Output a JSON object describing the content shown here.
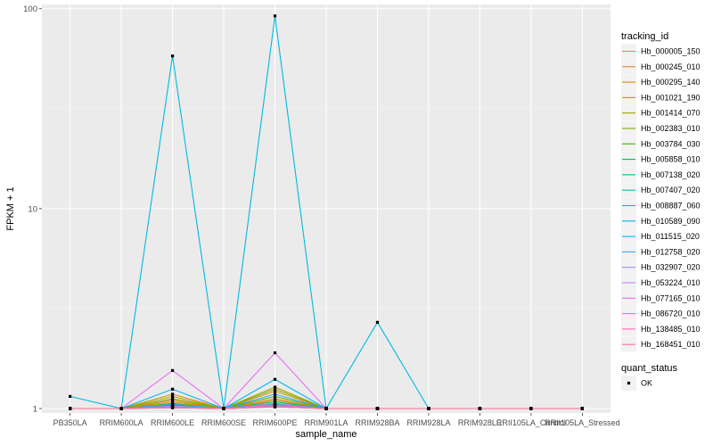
{
  "chart_data": {
    "type": "line",
    "xlabel": "sample_name",
    "ylabel": "FPKM + 1",
    "y_scale": "log10",
    "ylim": [
      0.95,
      105
    ],
    "y_ticks": [
      1,
      10,
      100
    ],
    "y_tick_labels": [
      "1",
      "10",
      "100"
    ],
    "categories": [
      "PB350LA",
      "RRIM600LA",
      "RRIM600LE",
      "RRIM600SE",
      "RRIM600PE",
      "RRIM901LA",
      "RRIM928BA",
      "RRIM928LA",
      "RRIM928LE",
      "RRII105LA_Control",
      "RRII105LA_Stressed"
    ],
    "legend_title": "tracking_id",
    "legend_position": "right",
    "grid": true,
    "background": "#ebebeb",
    "series": [
      {
        "name": "Hb_000005_150",
        "color": "#F8766D",
        "values": [
          1,
          1,
          1.05,
          1,
          1.06,
          1,
          1,
          1,
          1,
          1,
          1
        ]
      },
      {
        "name": "Hb_000245_010",
        "color": "#EA8331",
        "values": [
          1,
          1,
          1.1,
          1,
          1.12,
          1,
          1,
          1,
          1,
          1,
          1
        ]
      },
      {
        "name": "Hb_000295_140",
        "color": "#D89000",
        "values": [
          1,
          1,
          1.18,
          1,
          1.22,
          1,
          1,
          1,
          1,
          1,
          1
        ]
      },
      {
        "name": "Hb_001021_190",
        "color": "#C09B00",
        "values": [
          1,
          1,
          1.08,
          1,
          1.1,
          1,
          1,
          1,
          1,
          1,
          1
        ]
      },
      {
        "name": "Hb_001414_070",
        "color": "#A3A500",
        "values": [
          1,
          1,
          1.15,
          1,
          1.28,
          1,
          1,
          1,
          1,
          1,
          1
        ]
      },
      {
        "name": "Hb_002383_010",
        "color": "#7CAE00",
        "values": [
          1,
          1,
          1.12,
          1,
          1.25,
          1,
          1,
          1,
          1,
          1,
          1
        ]
      },
      {
        "name": "Hb_003784_030",
        "color": "#39B600",
        "values": [
          1,
          1,
          1.06,
          1,
          1.15,
          1,
          1,
          1,
          1,
          1,
          1
        ]
      },
      {
        "name": "Hb_005858_010",
        "color": "#00BB4E",
        "values": [
          1,
          1,
          1.04,
          1,
          1.08,
          1,
          1,
          1,
          1,
          1,
          1
        ]
      },
      {
        "name": "Hb_007138_020",
        "color": "#00BF7D",
        "values": [
          1,
          1,
          1.02,
          1,
          1.04,
          1,
          1,
          1,
          1,
          1,
          1
        ]
      },
      {
        "name": "Hb_007407_020",
        "color": "#00C1A3",
        "values": [
          1,
          1,
          1.03,
          1,
          1.05,
          1,
          1,
          1,
          1,
          1,
          1
        ]
      },
      {
        "name": "Hb_008887_060",
        "color": "#00BFC4",
        "values": [
          1,
          1,
          1.01,
          1,
          1.02,
          1,
          1,
          1,
          1,
          1,
          1
        ]
      },
      {
        "name": "Hb_010589_090",
        "color": "#00BAE0",
        "values": [
          1.15,
          1,
          58,
          1,
          92,
          1,
          2.7,
          1,
          1,
          1,
          1
        ]
      },
      {
        "name": "Hb_011515_020",
        "color": "#00B0F6",
        "values": [
          1,
          1,
          1.25,
          1,
          1.4,
          1,
          1,
          1,
          1,
          1,
          1
        ]
      },
      {
        "name": "Hb_012758_020",
        "color": "#35A2FF",
        "values": [
          1,
          1,
          1.05,
          1,
          1.18,
          1,
          1,
          1,
          1,
          1,
          1
        ]
      },
      {
        "name": "Hb_032907_020",
        "color": "#9590FF",
        "values": [
          1,
          1,
          1.03,
          1,
          1.06,
          1,
          1,
          1,
          1,
          1,
          1
        ]
      },
      {
        "name": "Hb_053224_010",
        "color": "#C77CFF",
        "values": [
          1,
          1,
          1.02,
          1,
          1.03,
          1,
          1,
          1,
          1,
          1,
          1
        ]
      },
      {
        "name": "Hb_077165_010",
        "color": "#E76BF3",
        "values": [
          1,
          1,
          1.55,
          1,
          1.9,
          1,
          1,
          1,
          1,
          1,
          1
        ]
      },
      {
        "name": "Hb_086720_010",
        "color": "#FA62DB",
        "values": [
          1,
          1,
          1.01,
          1,
          1.02,
          1,
          1,
          1,
          1,
          1,
          1
        ]
      },
      {
        "name": "Hb_138485_010",
        "color": "#FF62BC",
        "values": [
          1,
          1,
          1.02,
          1,
          1.04,
          1,
          1,
          1,
          1,
          1,
          1
        ]
      },
      {
        "name": "Hb_168451_010",
        "color": "#FF6C91",
        "values": [
          1,
          1,
          1.01,
          1,
          1.02,
          1,
          1,
          1,
          1,
          1,
          1
        ]
      }
    ],
    "shape_legend": {
      "title": "quant_status",
      "entries": [
        "OK"
      ]
    }
  }
}
